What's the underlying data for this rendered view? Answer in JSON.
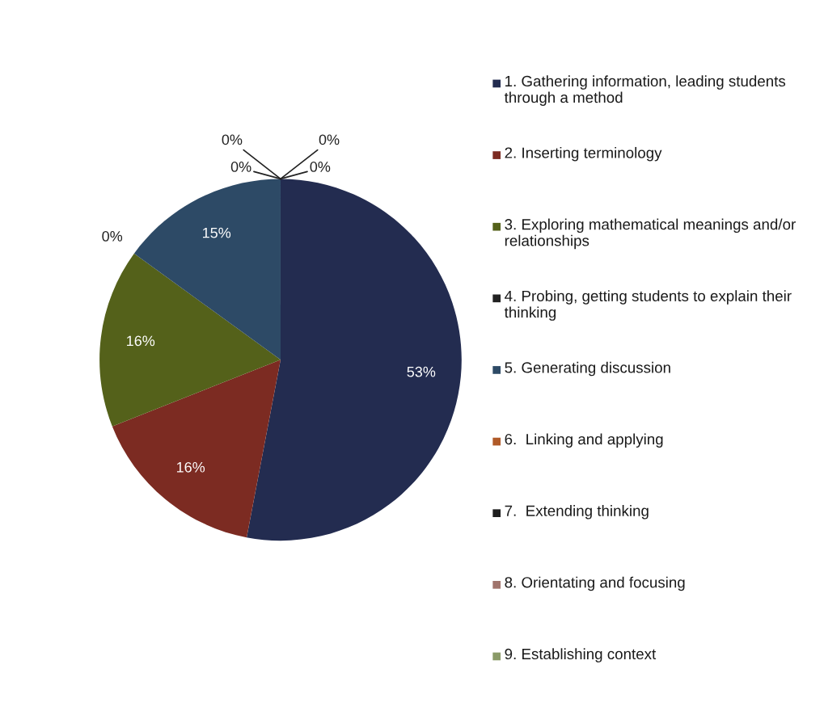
{
  "chart_data": {
    "type": "pie",
    "categories": [
      "1. Gathering information, leading students through a method",
      "2. Inserting terminology",
      "3. Exploring mathematical meanings and/or relationships",
      "4. Probing, getting students to explain their thinking",
      "5. Generating discussion",
      "6.  Linking and applying",
      "7.  Extending thinking",
      "8. Orientating and focusing",
      "9. Establishing context"
    ],
    "values": [
      53,
      16,
      16,
      0,
      15,
      0,
      0,
      0,
      0
    ],
    "value_labels": [
      "53%",
      "16%",
      "16%",
      "0%",
      "15%",
      "0%",
      "0%",
      "0%",
      "0%"
    ],
    "colors": [
      "#232c50",
      "#7c2b22",
      "#54611a",
      "#222222",
      "#2d4a66",
      "#b05a28",
      "#1e1e1e",
      "#a0746c",
      "#8a9a68"
    ],
    "legend": "right"
  }
}
